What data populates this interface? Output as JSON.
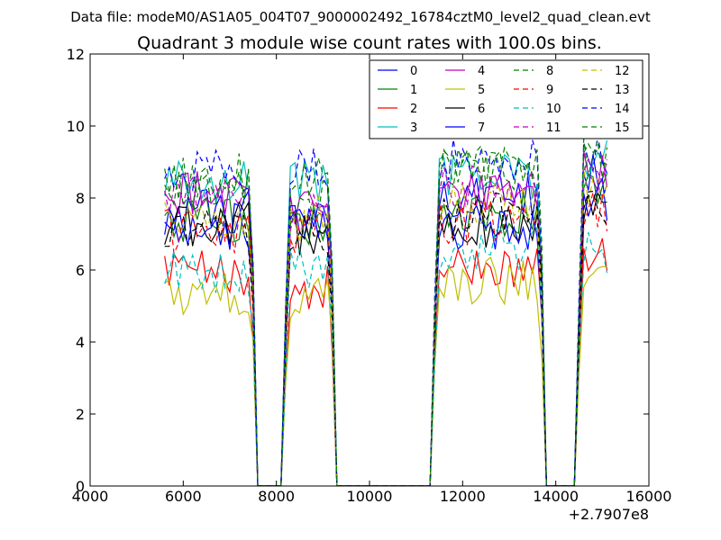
{
  "chart_data": {
    "type": "line",
    "suptitle": "Data file: modeM0/AS1A05_004T07_9000002492_16784cztM0_level2_quad_clean.evt",
    "title": "Quadrant 3 module wise count rates with 100.0s bins.",
    "xlabel": "",
    "ylabel": "",
    "x_offset_label": "+2.7907e8",
    "xlim": [
      4000,
      16000
    ],
    "ylim": [
      0,
      12
    ],
    "xticks": [
      4000,
      6000,
      8000,
      10000,
      12000,
      14000,
      16000
    ],
    "yticks": [
      0,
      2,
      4,
      6,
      8,
      10,
      12
    ],
    "legend_location": "upper right",
    "segments": [
      {
        "start": 5600,
        "end": 7500
      },
      {
        "start": 8200,
        "end": 9200
      },
      {
        "start": 11400,
        "end": 13700
      },
      {
        "start": 14500,
        "end": 15100
      }
    ],
    "gap_x": [
      7600,
      7700,
      7800,
      7900,
      8000,
      8100,
      9300,
      9400,
      9500,
      9600,
      9700,
      9800,
      9900,
      10000,
      10100,
      10200,
      10300,
      10400,
      10500,
      10600,
      10700,
      10800,
      10900,
      11000,
      11100,
      11200,
      11300,
      13800,
      13900,
      14000,
      14100,
      14200,
      14300,
      14400
    ],
    "series": [
      {
        "name": "0",
        "color": "#0000ff",
        "dash": "solid",
        "base": [
          7.6,
          7.4,
          8.0,
          8.6
        ]
      },
      {
        "name": "1",
        "color": "#008000",
        "dash": "solid",
        "base": [
          7.4,
          7.3,
          7.5,
          8.2
        ]
      },
      {
        "name": "2",
        "color": "#ff0000",
        "dash": "solid",
        "base": [
          5.9,
          5.5,
          6.1,
          6.5
        ]
      },
      {
        "name": "3",
        "color": "#00bfbf",
        "dash": "solid",
        "base": [
          8.5,
          8.5,
          8.6,
          9.2
        ]
      },
      {
        "name": "4",
        "color": "#bf00bf",
        "dash": "solid",
        "base": [
          8.2,
          7.8,
          8.1,
          8.8
        ]
      },
      {
        "name": "5",
        "color": "#bfbf00",
        "dash": "solid",
        "base": [
          5.3,
          5.2,
          5.7,
          5.9
        ]
      },
      {
        "name": "6",
        "color": "#000000",
        "dash": "solid",
        "base": [
          7.3,
          7.0,
          7.2,
          7.6
        ]
      },
      {
        "name": "7",
        "color": "#0000ff",
        "dash": "solid",
        "base": [
          7.2,
          7.3,
          7.2,
          8.0
        ]
      },
      {
        "name": "8",
        "color": "#008000",
        "dash": "dashed",
        "base": [
          8.2,
          8.0,
          8.7,
          8.9
        ]
      },
      {
        "name": "9",
        "color": "#ff0000",
        "dash": "dashed",
        "base": [
          7.1,
          7.0,
          7.3,
          7.6
        ]
      },
      {
        "name": "10",
        "color": "#00bfbf",
        "dash": "dashed",
        "base": [
          6.0,
          6.0,
          6.6,
          6.5
        ]
      },
      {
        "name": "11",
        "color": "#bf00bf",
        "dash": "dashed",
        "base": [
          8.2,
          7.6,
          8.3,
          8.6
        ]
      },
      {
        "name": "12",
        "color": "#bfbf00",
        "dash": "dashed",
        "base": [
          7.5,
          7.4,
          7.9,
          8.3
        ]
      },
      {
        "name": "13",
        "color": "#000000",
        "dash": "dashed",
        "base": [
          7.2,
          7.0,
          7.5,
          7.7
        ]
      },
      {
        "name": "14",
        "color": "#0000ff",
        "dash": "dashed",
        "base": [
          8.7,
          8.8,
          9.0,
          9.3
        ]
      },
      {
        "name": "15",
        "color": "#008000",
        "dash": "dashed",
        "base": [
          8.6,
          8.6,
          8.9,
          9.0
        ]
      }
    ]
  }
}
